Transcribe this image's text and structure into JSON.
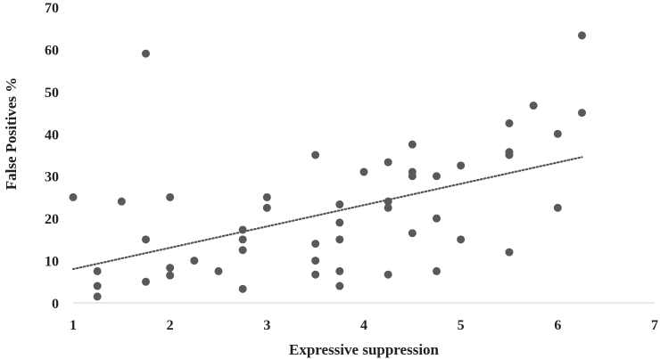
{
  "chart_data": {
    "type": "scatter",
    "title": "",
    "xlabel": "Expressive suppression",
    "ylabel": "False Positives %",
    "xlim": [
      1,
      7
    ],
    "ylim": [
      0,
      70
    ],
    "x_ticks": [
      "1",
      "2",
      "3",
      "4",
      "5",
      "6",
      "7"
    ],
    "y_ticks": [
      "0",
      "10",
      "20",
      "30",
      "40",
      "50",
      "60",
      "70"
    ],
    "grid": false,
    "legend": "none",
    "marker_color": "#595959",
    "trendline": {
      "style": "dotted",
      "color": "#555555",
      "x": [
        1,
        6.25
      ],
      "y": [
        8,
        34.5
      ]
    },
    "points": [
      [
        1.0,
        25
      ],
      [
        1.25,
        7.5
      ],
      [
        1.25,
        4
      ],
      [
        1.25,
        1.5
      ],
      [
        1.5,
        24
      ],
      [
        1.75,
        59
      ],
      [
        1.75,
        15
      ],
      [
        1.75,
        5
      ],
      [
        2.0,
        25
      ],
      [
        2.0,
        8.3
      ],
      [
        2.0,
        6.5
      ],
      [
        2.25,
        10
      ],
      [
        2.5,
        7.5
      ],
      [
        2.75,
        17.3
      ],
      [
        2.75,
        15
      ],
      [
        2.75,
        12.5
      ],
      [
        2.75,
        3.3
      ],
      [
        3.0,
        25
      ],
      [
        3.0,
        22.5
      ],
      [
        3.5,
        35
      ],
      [
        3.5,
        14
      ],
      [
        3.5,
        10
      ],
      [
        3.5,
        6.7
      ],
      [
        3.75,
        23.3
      ],
      [
        3.75,
        19
      ],
      [
        3.75,
        15
      ],
      [
        3.75,
        7.5
      ],
      [
        3.75,
        4
      ],
      [
        4.0,
        31
      ],
      [
        4.25,
        33.3
      ],
      [
        4.25,
        24
      ],
      [
        4.25,
        22.5
      ],
      [
        4.25,
        6.7
      ],
      [
        4.5,
        37.5
      ],
      [
        4.5,
        31
      ],
      [
        4.5,
        30
      ],
      [
        4.5,
        16.5
      ],
      [
        4.75,
        30
      ],
      [
        4.75,
        20
      ],
      [
        4.75,
        7.5
      ],
      [
        5.0,
        32.5
      ],
      [
        5.0,
        15
      ],
      [
        5.5,
        42.5
      ],
      [
        5.5,
        35.7
      ],
      [
        5.5,
        35
      ],
      [
        5.5,
        12
      ],
      [
        5.75,
        46.7
      ],
      [
        6.0,
        40
      ],
      [
        6.0,
        22.5
      ],
      [
        6.25,
        63.3
      ],
      [
        6.25,
        45
      ]
    ]
  }
}
